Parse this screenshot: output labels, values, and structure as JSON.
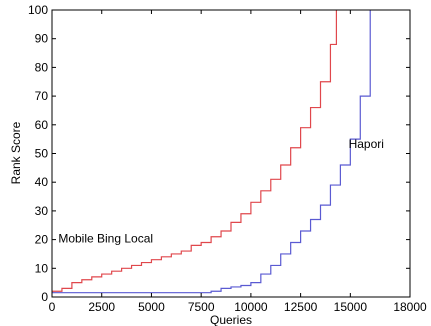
{
  "chart_data": {
    "type": "line",
    "title": "",
    "xlabel": "Queries",
    "ylabel": "Rank Score",
    "xlim": [
      0,
      18000
    ],
    "ylim": [
      0,
      100
    ],
    "xticks": [
      0,
      2500,
      5000,
      7500,
      10000,
      12500,
      15000,
      18000
    ],
    "xtick_labels": [
      "0",
      "2500",
      "5000",
      "7500",
      "10000",
      "12500",
      "15000",
      "18000"
    ],
    "yticks": [
      0,
      10,
      20,
      30,
      40,
      50,
      60,
      70,
      80,
      90,
      100
    ],
    "ytick_labels": [
      "0",
      "10",
      "20",
      "30",
      "40",
      "50",
      "60",
      "70",
      "80",
      "90",
      "100"
    ],
    "grid": false,
    "legend": "none",
    "series": [
      {
        "name": "Mobile Bing Local",
        "color": "#e0474c",
        "step": true,
        "x": [
          0,
          500,
          1000,
          1500,
          2000,
          2500,
          3000,
          3500,
          4000,
          4500,
          5000,
          5500,
          6000,
          6500,
          7000,
          7500,
          8000,
          8500,
          9000,
          9500,
          10000,
          10500,
          11000,
          11500,
          12000,
          12500,
          13000,
          13500,
          14000,
          14300
        ],
        "y": [
          2,
          3,
          5,
          6,
          7,
          8,
          9,
          10,
          11,
          12,
          13,
          14,
          15,
          16,
          18,
          19,
          21,
          23,
          26,
          29,
          33,
          37,
          41,
          46,
          52,
          59,
          66,
          75,
          88,
          100
        ]
      },
      {
        "name": "Hapori",
        "color": "#5a5ad2",
        "step": true,
        "x": [
          0,
          1000,
          2000,
          3000,
          4000,
          5000,
          6000,
          7000,
          7800,
          8000,
          8500,
          9000,
          9500,
          10000,
          10500,
          11000,
          11500,
          12000,
          12500,
          13000,
          13500,
          14000,
          14500,
          15000,
          15500,
          16000
        ],
        "y": [
          1.5,
          1.5,
          1.5,
          1.5,
          1.5,
          1.5,
          1.5,
          1.5,
          1.5,
          2,
          3,
          3.5,
          4,
          5,
          8,
          11,
          15,
          19,
          23,
          27,
          32,
          39,
          46,
          55,
          70,
          100
        ]
      }
    ],
    "annotations": [
      {
        "text": "Mobile Bing Local",
        "x": 2700,
        "y": 19,
        "series": 0
      },
      {
        "text": "Hapori",
        "x": 15800,
        "y": 52,
        "series": 1
      }
    ]
  }
}
